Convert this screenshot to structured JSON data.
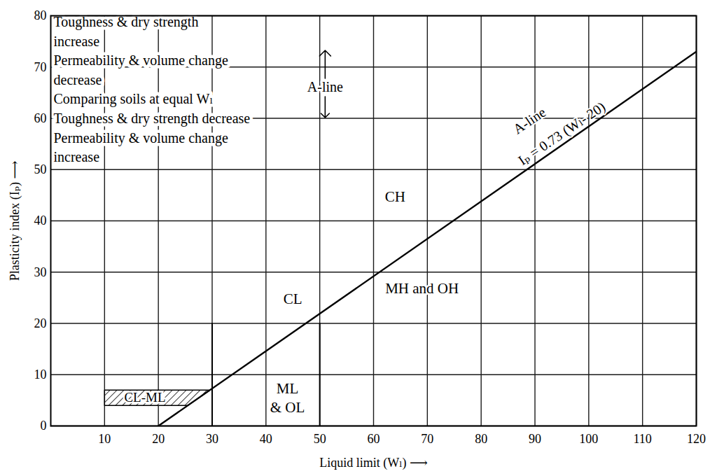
{
  "chart_data": {
    "type": "line",
    "x_label": "Liquid limit (Wₗ) ⟶",
    "y_label": "Plasticity index (Iₚ) ⟶",
    "xlim": [
      0,
      120
    ],
    "xticks": [
      10,
      20,
      30,
      40,
      50,
      60,
      70,
      80,
      90,
      100,
      110,
      120
    ],
    "ylim": [
      0,
      80
    ],
    "yticks": [
      0,
      10,
      20,
      30,
      40,
      50,
      60,
      70,
      80
    ],
    "grid": true,
    "x": [
      20,
      120
    ],
    "values": [
      0,
      73
    ],
    "color": "#000000",
    "line_labels": [
      {
        "text": "A-line",
        "x": 89,
        "y": 59.5
      },
      {
        "text": "Iₚ = 0.73 (Wₗ- 20)",
        "x": 95,
        "y": 57
      }
    ],
    "region_labels": [
      {
        "text": "CH",
        "x": 64,
        "y": 45
      },
      {
        "text": "CL",
        "x": 45,
        "y": 25
      },
      {
        "text": "MH and OH",
        "x": 69,
        "y": 27
      },
      {
        "text": "ML\n& OL",
        "x": 44,
        "y": 5.7
      }
    ],
    "hatched_region": {
      "label": "CL-ML",
      "label_x": 17.5,
      "label_y": 5.5,
      "x": [
        10,
        25.5,
        29.6,
        10
      ],
      "y": [
        4,
        4,
        7,
        7
      ]
    },
    "dashed_lines": [
      {
        "x": 30,
        "y": [
          0,
          20
        ],
        "line_style": "dashed"
      },
      {
        "x": 50,
        "y": [
          0,
          20
        ],
        "line_style": "dashed"
      }
    ],
    "notes": [
      "Toughness & dry strength",
      "increase",
      "Permeability & volume change",
      "decrease",
      "Comparing soils at equal Wₗ",
      "Toughness & dry strength decrease",
      "Permeability & volume change",
      "increase"
    ],
    "note_marker": {
      "text": "A-line",
      "x": 51,
      "y": 66
    }
  }
}
